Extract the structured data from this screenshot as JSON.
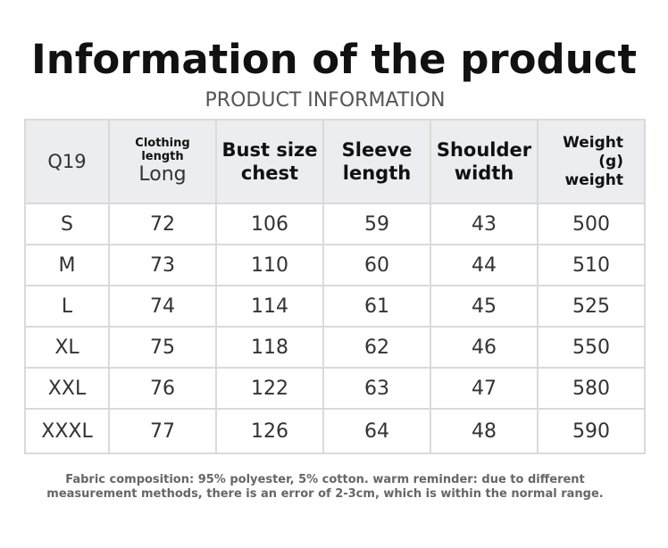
{
  "title": "Information of the product",
  "subtitle": "PRODUCT INFORMATION",
  "table": {
    "header": {
      "model": "Q19",
      "clothing_length_top": "Clothing length",
      "clothing_length_bottom": "Long",
      "bust": "Bust size chest",
      "sleeve": "Sleeve length",
      "shoulder": "Shoulder width",
      "weight": "Weight (g) weight"
    },
    "rows": [
      {
        "size": "S",
        "length": "72",
        "bust": "106",
        "sleeve": "59",
        "shoulder": "43",
        "weight": "500"
      },
      {
        "size": "M",
        "length": "73",
        "bust": "110",
        "sleeve": "60",
        "shoulder": "44",
        "weight": "510"
      },
      {
        "size": "L",
        "length": "74",
        "bust": "114",
        "sleeve": "61",
        "shoulder": "45",
        "weight": "525"
      },
      {
        "size": "XL",
        "length": "75",
        "bust": "118",
        "sleeve": "62",
        "shoulder": "46",
        "weight": "550"
      },
      {
        "size": "XXL",
        "length": "76",
        "bust": "122",
        "sleeve": "63",
        "shoulder": "47",
        "weight": "580"
      },
      {
        "size": "XXXL",
        "length": "77",
        "bust": "126",
        "sleeve": "64",
        "shoulder": "48",
        "weight": "590"
      }
    ]
  },
  "note": {
    "line1": "Fabric composition: 95% polyester, 5% cotton. warm reminder: due to different",
    "line2": "measurement methods, there is an error of 2-3cm, which is within the normal range."
  }
}
